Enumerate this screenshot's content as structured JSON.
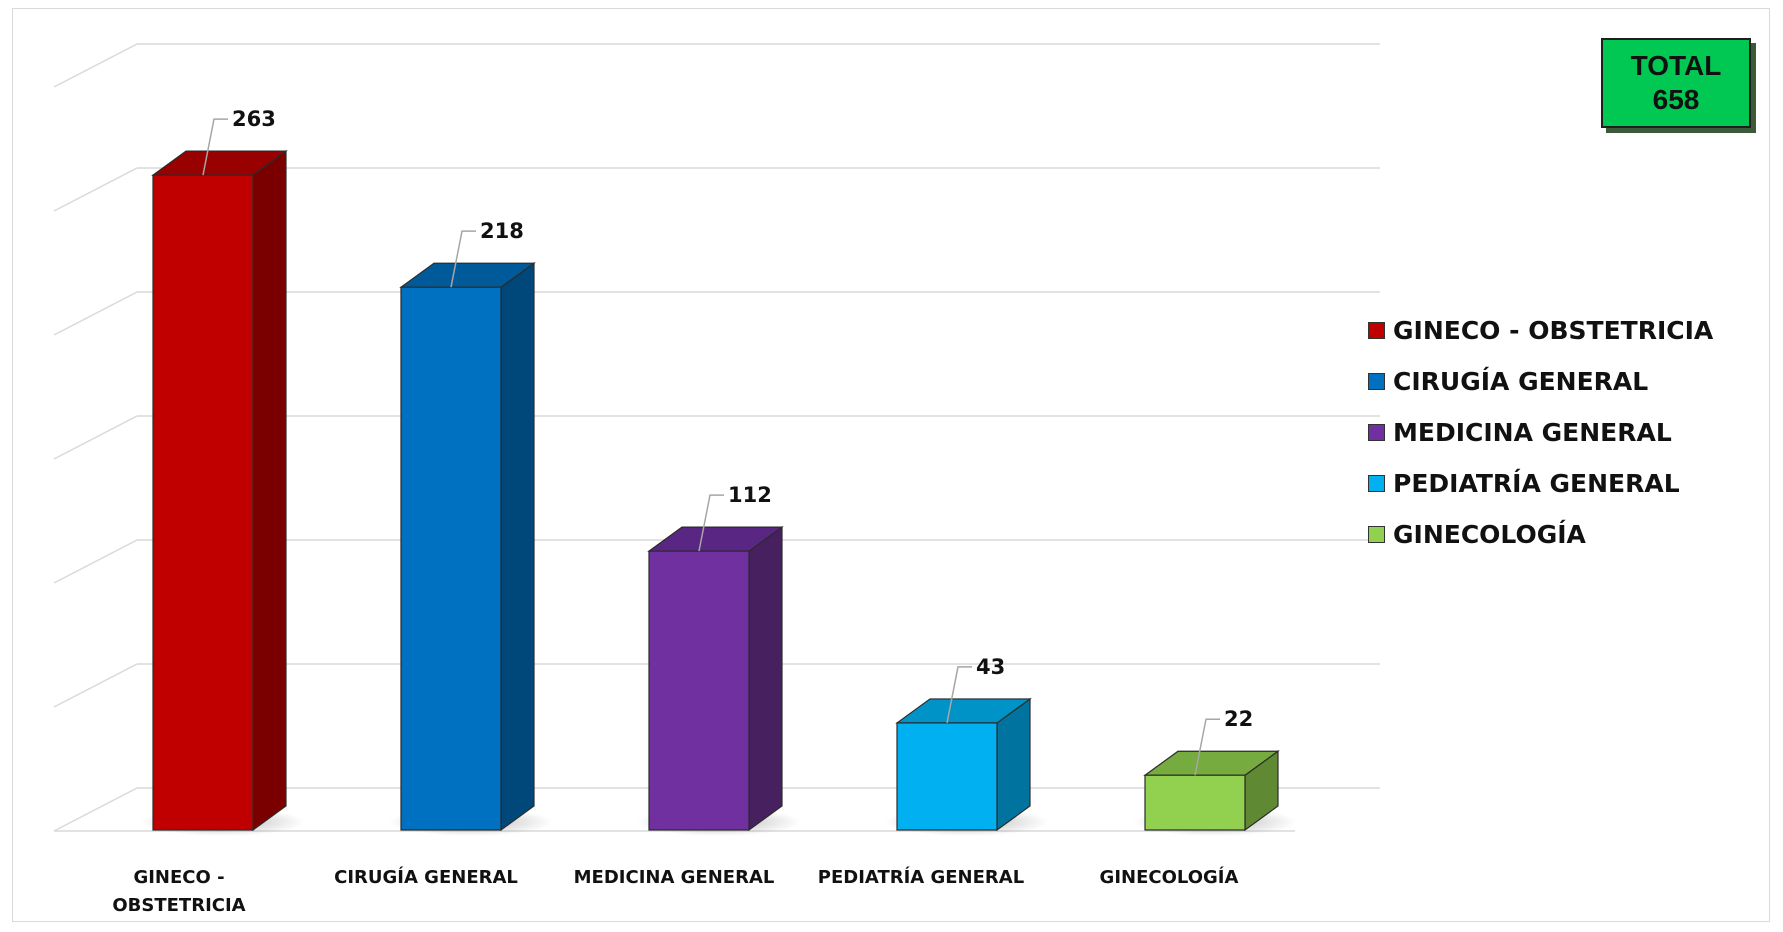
{
  "total": {
    "label": "TOTAL",
    "value": "658"
  },
  "chart_data": {
    "type": "bar",
    "title": "",
    "xlabel": "",
    "ylabel": "",
    "categories": [
      "GINECO - OBSTETRICIA",
      "CIRUGÍA GENERAL",
      "MEDICINA GENERAL",
      "PEDIATRÍA GENERAL",
      "GINECOLOGÍA"
    ],
    "category_labels": [
      [
        "GINECO -",
        "OBSTETRICIA"
      ],
      [
        "CIRUGÍA GENERAL"
      ],
      [
        "MEDICINA GENERAL"
      ],
      [
        "PEDIATRÍA GENERAL"
      ],
      [
        "GINECOLOGÍA"
      ]
    ],
    "values": [
      263,
      218,
      112,
      43,
      22
    ],
    "data_labels": [
      "263",
      "218",
      "112",
      "43",
      "22"
    ],
    "ylim": [
      0,
      300
    ],
    "grid": true,
    "legend_position": "right",
    "style": "3d-column",
    "colors": [
      "#c00000",
      "#0070c0",
      "#7030a0",
      "#00b0f0",
      "#92d050"
    ],
    "side_colors": [
      "#7a0000",
      "#00477a",
      "#47205f",
      "#00749e",
      "#5f8a33"
    ],
    "top_colors": [
      "#990000",
      "#005a9a",
      "#5a2683",
      "#0093c8",
      "#76ab3f"
    ]
  }
}
